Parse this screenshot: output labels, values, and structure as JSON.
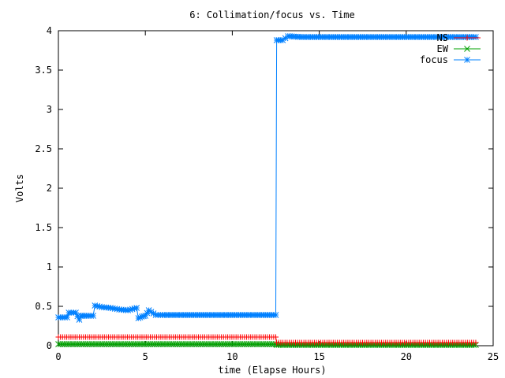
{
  "chart_data": {
    "type": "line",
    "title": "6: Collimation/focus vs. Time",
    "xlabel": "time (Elapse Hours)",
    "ylabel": "Volts",
    "xlim": [
      0,
      25
    ],
    "ylim": [
      0,
      4
    ],
    "xticks": [
      0,
      5,
      10,
      15,
      20,
      25
    ],
    "yticks": [
      0,
      0.5,
      1,
      1.5,
      2,
      2.5,
      3,
      3.5,
      4
    ],
    "xtick_labels": [
      "0",
      "5",
      "10",
      "15",
      "20",
      "25"
    ],
    "ytick_labels": [
      "0",
      "0.5",
      "1",
      "1.5",
      "2",
      "2.5",
      "3",
      "3.5",
      "4"
    ],
    "grid": false,
    "legend_position": "top-right",
    "series": [
      {
        "name": "NS",
        "color": "#ff0000",
        "marker": "plus",
        "x": [
          0.0,
          12.5,
          12.55,
          24.0
        ],
        "y": [
          0.11,
          0.11,
          0.04,
          0.04
        ]
      },
      {
        "name": "EW",
        "color": "#00a000",
        "marker": "x",
        "x": [
          0.0,
          12.5,
          12.55,
          24.0
        ],
        "y": [
          0.02,
          0.02,
          0.01,
          0.01
        ]
      },
      {
        "name": "focus",
        "color": "#0080ff",
        "marker": "star",
        "x": [
          0.0,
          0.5,
          0.6,
          1.0,
          1.2,
          1.3,
          1.5,
          2.0,
          2.1,
          2.5,
          3.0,
          3.5,
          4.0,
          4.5,
          4.6,
          4.8,
          5.0,
          5.2,
          5.6,
          6.0,
          8.0,
          10.0,
          12.5,
          12.55,
          12.9,
          13.2,
          14.0,
          24.0
        ],
        "y": [
          0.36,
          0.36,
          0.42,
          0.42,
          0.33,
          0.38,
          0.38,
          0.38,
          0.51,
          0.49,
          0.48,
          0.46,
          0.45,
          0.48,
          0.35,
          0.37,
          0.38,
          0.45,
          0.39,
          0.39,
          0.39,
          0.39,
          0.39,
          3.88,
          3.88,
          3.93,
          3.92,
          3.92
        ]
      }
    ]
  }
}
